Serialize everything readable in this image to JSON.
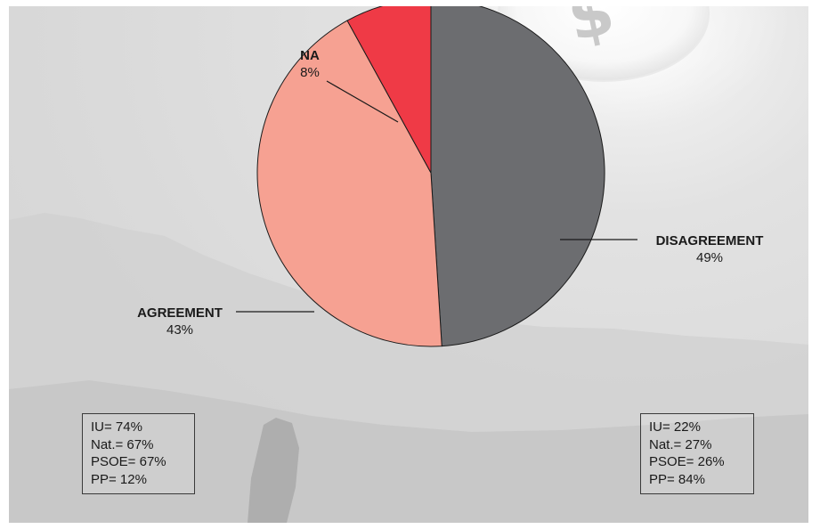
{
  "chart_data": {
    "type": "pie",
    "title": "",
    "slices": [
      {
        "label": "DISAGREEMENT",
        "percent_label": "49%",
        "value": 49,
        "color": "#6c6d70"
      },
      {
        "label": "AGREEMENT",
        "percent_label": "43%",
        "value": 43,
        "color": "#f6a192"
      },
      {
        "label": "NA",
        "percent_label": "8%",
        "value": 8,
        "color": "#ef3a46"
      }
    ],
    "annotations": {
      "agreement_by_party": [
        {
          "party": "IU",
          "text": "IU= 74%",
          "value": 74
        },
        {
          "party": "Nat.",
          "text": "Nat.= 67%",
          "value": 67
        },
        {
          "party": "PSOE",
          "text": "PSOE= 67%",
          "value": 67
        },
        {
          "party": "PP",
          "text": "PP= 12%",
          "value": 12
        }
      ],
      "disagreement_by_party": [
        {
          "party": "IU",
          "text": "IU= 22%",
          "value": 22
        },
        {
          "party": "Nat.",
          "text": "Nat.= 27%",
          "value": 27
        },
        {
          "party": "PSOE",
          "text": "PSOE= 26%",
          "value": 26
        },
        {
          "party": "PP",
          "text": "PP= 84%",
          "value": 84
        }
      ]
    },
    "legend": "none"
  },
  "background": {
    "icon": "coin-icon",
    "icon_glyph": "$"
  }
}
